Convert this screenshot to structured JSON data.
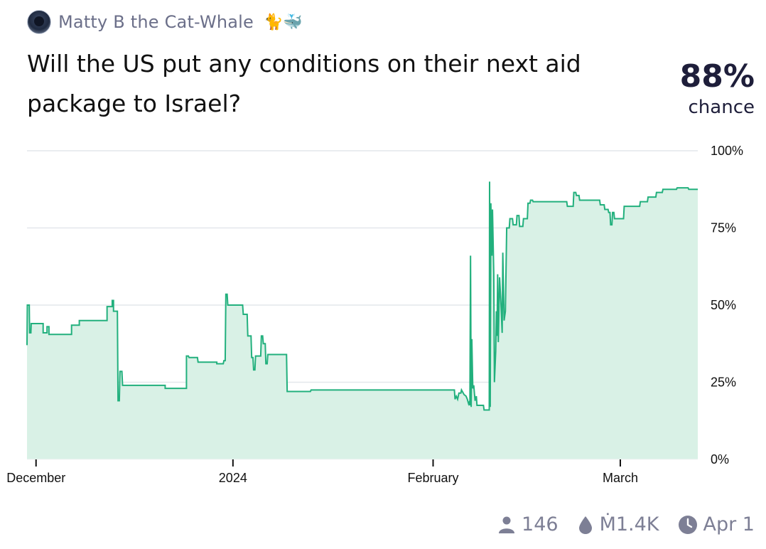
{
  "author": {
    "name": "Matty B the Cat-Whale",
    "emoji": "🐈🐳",
    "avatar": "cat-avatar"
  },
  "question": "Will the US put any conditions on their next aid package to Israel?",
  "probability": {
    "value": "88%",
    "label": "chance"
  },
  "footer": {
    "traders": "146",
    "traders_icon": "person-icon",
    "volume": "Ṁ1.4K",
    "volume_icon": "droplet-icon",
    "close_date": "Apr 1",
    "close_icon": "clock-icon"
  },
  "colors": {
    "line": "#22b07d",
    "fill": "#d9f1e6",
    "grid": "#e4e7ec"
  },
  "chart_data": {
    "type": "area",
    "ylim": [
      0,
      100
    ],
    "y_ticks": [
      "0%",
      "25%",
      "50%",
      "75%",
      "100%"
    ],
    "x_ticks": [
      {
        "label": "December",
        "x": 0.5
      },
      {
        "label": "2024",
        "x": 31
      },
      {
        "label": "February",
        "x": 62
      },
      {
        "label": "March",
        "x": 91
      }
    ],
    "xlim": [
      -0.9,
      103
    ],
    "points": [
      [
        -0.9,
        37
      ],
      [
        -0.85,
        50
      ],
      [
        -0.55,
        50
      ],
      [
        -0.5,
        41
      ],
      [
        -0.3,
        41
      ],
      [
        -0.25,
        44
      ],
      [
        1.6,
        44
      ],
      [
        1.6,
        41
      ],
      [
        2.2,
        41
      ],
      [
        2.2,
        43
      ],
      [
        2.5,
        43
      ],
      [
        2.5,
        40.5
      ],
      [
        6,
        40.5
      ],
      [
        6,
        43.5
      ],
      [
        7.2,
        43.5
      ],
      [
        7.2,
        45
      ],
      [
        11.5,
        45
      ],
      [
        11.5,
        49.5
      ],
      [
        12.3,
        49.5
      ],
      [
        12.3,
        51.5
      ],
      [
        12.5,
        51.5
      ],
      [
        12.5,
        48
      ],
      [
        13.1,
        48
      ],
      [
        13.2,
        19
      ],
      [
        13.4,
        19
      ],
      [
        13.5,
        28.5
      ],
      [
        13.8,
        28.5
      ],
      [
        13.9,
        24
      ],
      [
        20.5,
        24
      ],
      [
        20.5,
        23
      ],
      [
        23.8,
        23
      ],
      [
        23.8,
        33.5
      ],
      [
        24.1,
        33.5
      ],
      [
        24.2,
        33
      ],
      [
        25.5,
        33
      ],
      [
        25.6,
        31.5
      ],
      [
        28.5,
        31.5
      ],
      [
        28.5,
        31
      ],
      [
        29.5,
        31
      ],
      [
        29.6,
        32
      ],
      [
        29.8,
        32
      ],
      [
        29.9,
        53.5
      ],
      [
        30.1,
        53.5
      ],
      [
        30.2,
        50
      ],
      [
        32.5,
        50
      ],
      [
        32.6,
        47
      ],
      [
        33.2,
        47
      ],
      [
        33.3,
        40
      ],
      [
        33.8,
        40
      ],
      [
        33.9,
        33
      ],
      [
        34.1,
        33
      ],
      [
        34.2,
        29
      ],
      [
        34.4,
        29
      ],
      [
        34.5,
        33.5
      ],
      [
        35.3,
        33.5
      ],
      [
        35.4,
        40
      ],
      [
        35.6,
        40
      ],
      [
        35.7,
        37.5
      ],
      [
        36.0,
        37.5
      ],
      [
        36.1,
        31
      ],
      [
        36.3,
        31
      ],
      [
        36.4,
        34
      ],
      [
        39.3,
        34
      ],
      [
        39.4,
        22
      ],
      [
        43.0,
        22
      ],
      [
        43.1,
        22.5
      ],
      [
        65.3,
        22.5
      ],
      [
        65.4,
        19.5
      ],
      [
        65.6,
        20.5
      ],
      [
        65.8,
        19.5
      ],
      [
        66.0,
        21.5
      ],
      [
        66.3,
        21.5
      ],
      [
        66.4,
        22.5
      ],
      [
        66.8,
        21
      ],
      [
        67.1,
        20.5
      ],
      [
        67.3,
        19.5
      ],
      [
        67.5,
        18
      ],
      [
        67.6,
        18.5
      ],
      [
        67.7,
        17.5
      ],
      [
        67.8,
        66
      ],
      [
        67.9,
        17
      ],
      [
        68.0,
        39
      ],
      [
        68.15,
        23
      ],
      [
        68.3,
        24
      ],
      [
        68.5,
        19
      ],
      [
        68.7,
        20.5
      ],
      [
        68.8,
        17.5
      ],
      [
        69.8,
        17.5
      ],
      [
        69.9,
        16
      ],
      [
        70.7,
        16
      ],
      [
        70.75,
        90
      ],
      [
        70.85,
        17
      ],
      [
        70.95,
        83
      ],
      [
        71.1,
        66
      ],
      [
        71.2,
        81
      ],
      [
        71.4,
        60
      ],
      [
        71.5,
        25
      ],
      [
        71.7,
        35
      ],
      [
        71.8,
        48
      ],
      [
        71.9,
        40
      ],
      [
        72.0,
        60
      ],
      [
        72.1,
        38
      ],
      [
        72.3,
        59
      ],
      [
        72.5,
        51
      ],
      [
        72.7,
        41
      ],
      [
        72.8,
        67
      ],
      [
        73.0,
        45
      ],
      [
        73.2,
        48
      ],
      [
        73.4,
        75
      ],
      [
        73.8,
        75
      ],
      [
        73.9,
        78
      ],
      [
        74.3,
        78
      ],
      [
        74.4,
        76
      ],
      [
        74.9,
        76
      ],
      [
        75.0,
        79
      ],
      [
        75.3,
        79
      ],
      [
        75.4,
        75.5
      ],
      [
        75.9,
        75.5
      ],
      [
        76.0,
        78
      ],
      [
        76.6,
        78
      ],
      [
        76.7,
        83
      ],
      [
        77.0,
        83
      ],
      [
        77.1,
        84
      ],
      [
        77.4,
        84
      ],
      [
        77.5,
        83.5
      ],
      [
        82.7,
        83.5
      ],
      [
        82.8,
        82
      ],
      [
        83.7,
        82
      ],
      [
        83.8,
        86.5
      ],
      [
        84.1,
        86.5
      ],
      [
        84.2,
        85.5
      ],
      [
        84.6,
        85.5
      ],
      [
        84.7,
        84
      ],
      [
        87.8,
        84
      ],
      [
        87.9,
        82.5
      ],
      [
        88.5,
        82.5
      ],
      [
        88.6,
        81
      ],
      [
        89.1,
        81
      ],
      [
        89.2,
        80
      ],
      [
        89.4,
        80
      ],
      [
        89.5,
        76
      ],
      [
        89.7,
        76
      ],
      [
        89.8,
        80
      ],
      [
        90.0,
        80
      ],
      [
        90.1,
        78
      ],
      [
        91.5,
        78
      ],
      [
        91.6,
        82
      ],
      [
        94.0,
        82
      ],
      [
        94.1,
        83.5
      ],
      [
        95.2,
        83.5
      ],
      [
        95.3,
        85
      ],
      [
        96.5,
        85
      ],
      [
        96.6,
        86.5
      ],
      [
        97.5,
        86.5
      ],
      [
        97.6,
        87.5
      ],
      [
        99.7,
        87.5
      ],
      [
        99.8,
        88
      ],
      [
        101.5,
        88
      ],
      [
        101.6,
        87.5
      ],
      [
        103,
        87.5
      ]
    ]
  }
}
